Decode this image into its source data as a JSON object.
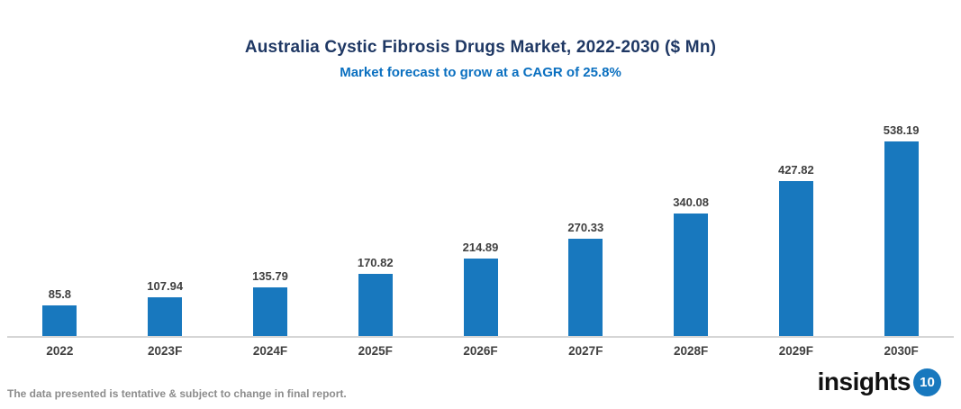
{
  "header": {
    "title": "Australia Cystic Fibrosis Drugs Market, 2022-2030 ($ Mn)",
    "subtitle": "Market forecast to grow at a CAGR of 25.8%"
  },
  "chart_data": {
    "type": "bar",
    "title": "Australia Cystic Fibrosis Drugs Market, 2022-2030 ($ Mn)",
    "subtitle": "Market forecast to grow at a CAGR of 25.8%",
    "categories": [
      "2022",
      "2023F",
      "2024F",
      "2025F",
      "2026F",
      "2027F",
      "2028F",
      "2029F",
      "2030F"
    ],
    "values": [
      85.8,
      107.94,
      135.79,
      170.82,
      214.89,
      270.33,
      340.08,
      427.82,
      538.19
    ],
    "value_labels": [
      "85.8",
      "107.94",
      "135.79",
      "170.82",
      "214.89",
      "270.33",
      "340.08",
      "427.82",
      "538.19"
    ],
    "xlabel": "",
    "ylabel": "",
    "ylim": [
      0,
      600
    ],
    "grid": false,
    "legend_position": "none",
    "data_labels": "above bars"
  },
  "colors": {
    "title": "#1f3864",
    "subtitle": "#0b70c0",
    "bar": "#1878be",
    "value_label": "#404040",
    "axis_line": "#d6d6d6",
    "footer": "#8c8c8c",
    "logo_text": "#111111",
    "logo_badge": "#1878be"
  },
  "footer": {
    "note": "The data presented is tentative & subject to change in final report."
  },
  "logo": {
    "text": "insights",
    "badge": "10"
  }
}
